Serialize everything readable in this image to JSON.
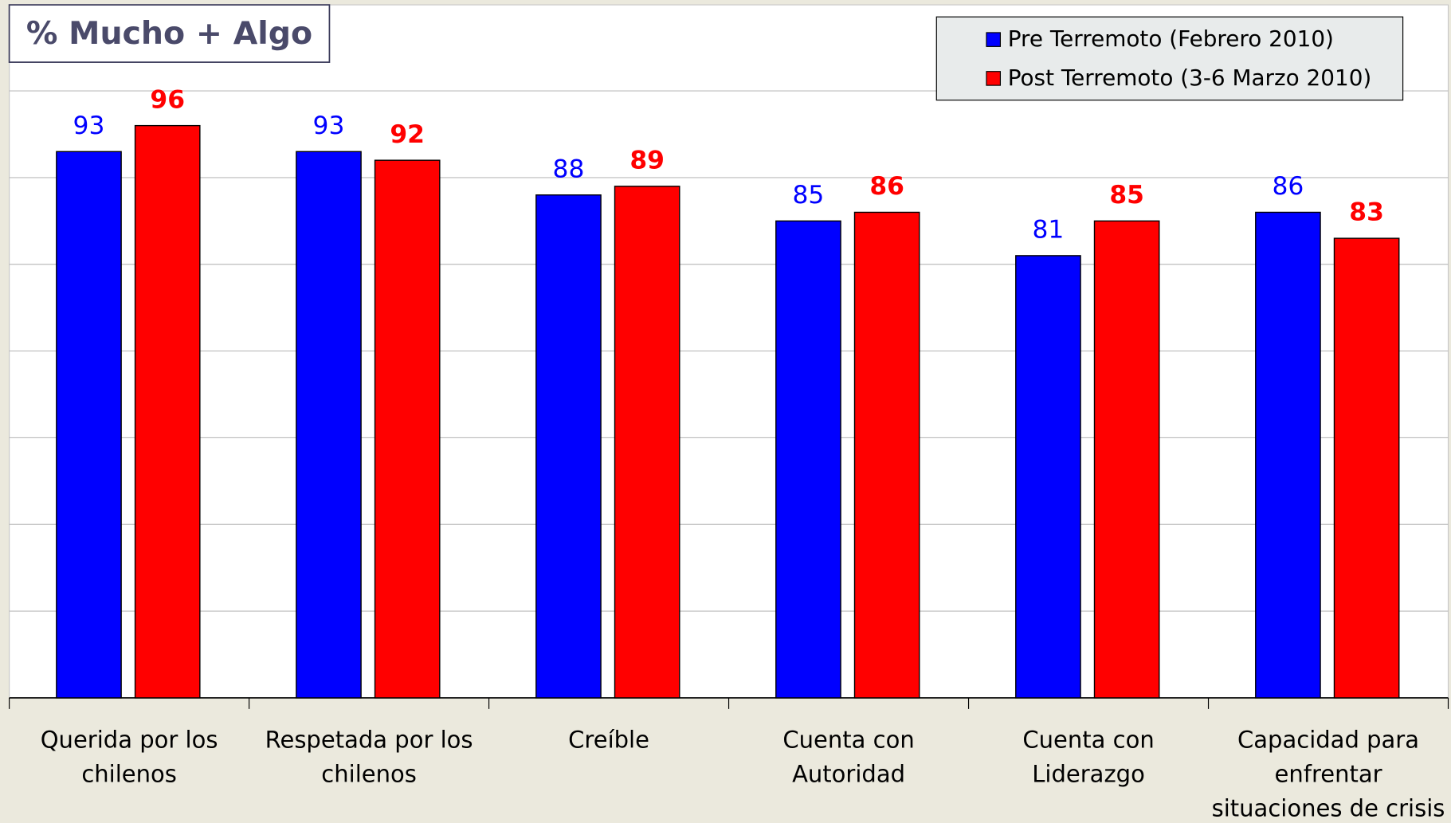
{
  "chart_data": {
    "type": "bar",
    "title": "% Mucho + Algo",
    "categories": [
      "Querida por los\nchilenos",
      "Respetada por los\nchilenos",
      "Creíble",
      "Cuenta con\nAutoridad",
      "Cuenta con\nLiderazgo",
      "Capacidad para\nenfrentar\nsituaciones de crisis"
    ],
    "series": [
      {
        "name": "Pre Terremoto (Febrero 2010)",
        "color": "#0000ff",
        "values": [
          93,
          93,
          88,
          85,
          81,
          86
        ]
      },
      {
        "name": "Post Terremoto (3-6 Marzo 2010)",
        "color": "#ff0000",
        "values": [
          96,
          92,
          89,
          86,
          85,
          83
        ]
      }
    ],
    "ylim": [
      30,
      100
    ],
    "yticks": [
      30,
      40,
      50,
      60,
      70,
      80,
      90,
      100
    ],
    "grid": true,
    "legend": "top-right"
  }
}
